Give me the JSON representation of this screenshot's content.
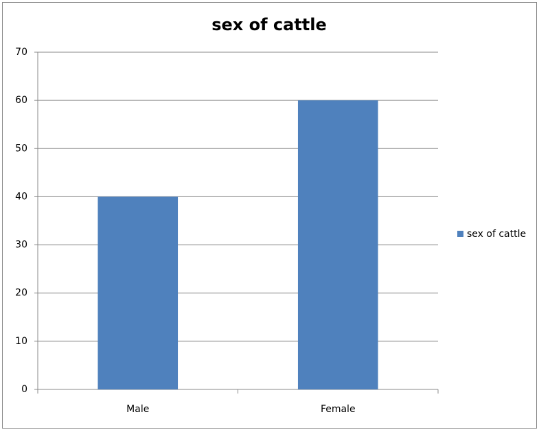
{
  "chart_data": {
    "type": "bar",
    "title": "sex of cattle",
    "categories": [
      "Male",
      "Female"
    ],
    "series": [
      {
        "name": "sex of cattle",
        "color": "#4f81bd",
        "values": [
          40,
          60
        ]
      }
    ],
    "ylim": [
      0,
      70
    ],
    "yticks": [
      0,
      10,
      20,
      30,
      40,
      50,
      60,
      70
    ],
    "grid": true,
    "legend": "right"
  }
}
